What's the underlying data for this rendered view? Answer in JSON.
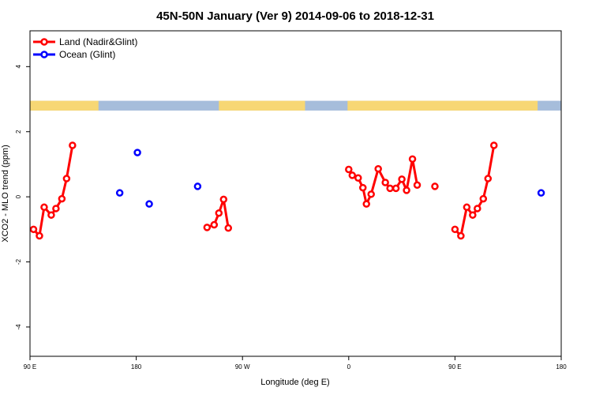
{
  "chart_data": {
    "type": "line",
    "title": "45N-50N January (Ver 9)   2014-09-06 to 2018-12-31",
    "xlabel": "Longitude (deg E)",
    "ylabel": "XCO2 - MLO trend (ppm)",
    "xlim": [
      90,
      540
    ],
    "ylim": [
      -4.9,
      5.1
    ],
    "x_ticks": [
      {
        "value": 90,
        "label": "90 E"
      },
      {
        "value": 180,
        "label": "180"
      },
      {
        "value": 270,
        "label": "90 W"
      },
      {
        "value": 360,
        "label": "0"
      },
      {
        "value": 450,
        "label": "90 E"
      },
      {
        "value": 540,
        "label": "180"
      }
    ],
    "y_ticks": [
      {
        "value": -4,
        "label": "-4"
      },
      {
        "value": -2,
        "label": "-2"
      },
      {
        "value": 0,
        "label": "0"
      },
      {
        "value": 2,
        "label": "2"
      },
      {
        "value": 4,
        "label": "4"
      }
    ],
    "grid": false,
    "legend_position": "top-left",
    "land_band": {
      "y_range": [
        2.65,
        2.95
      ],
      "ocean_color": "#a6bddb",
      "land_color": "#f7d774"
    },
    "series": [
      {
        "name": "Land (Nadir&Glint)",
        "color": "#ff0000",
        "line": true,
        "segments": [
          [
            [
              93,
              -1.0
            ],
            [
              98,
              -1.2
            ],
            [
              102,
              -0.32
            ],
            [
              108,
              -0.56
            ],
            [
              112,
              -0.36
            ],
            [
              117,
              -0.06
            ],
            [
              121,
              0.56
            ],
            [
              126,
              1.58
            ]
          ],
          [
            [
              240,
              -0.94
            ],
            [
              246,
              -0.86
            ],
            [
              250,
              -0.5
            ],
            [
              254,
              -0.08
            ],
            [
              258,
              -0.96
            ]
          ],
          [
            [
              360,
              0.84
            ],
            [
              363,
              0.66
            ],
            [
              368,
              0.58
            ],
            [
              372,
              0.28
            ],
            [
              375,
              -0.22
            ],
            [
              379,
              0.08
            ],
            [
              385,
              0.86
            ],
            [
              391,
              0.44
            ],
            [
              395,
              0.26
            ],
            [
              400,
              0.26
            ],
            [
              405,
              0.54
            ],
            [
              409,
              0.2
            ],
            [
              414,
              1.16
            ],
            [
              418,
              0.36
            ]
          ],
          [
            [
              433,
              0.32
            ]
          ],
          [
            [
              450,
              -1.0
            ],
            [
              455,
              -1.2
            ],
            [
              460,
              -0.32
            ],
            [
              465,
              -0.56
            ],
            [
              469,
              -0.36
            ],
            [
              474,
              -0.06
            ],
            [
              478,
              0.56
            ],
            [
              483,
              1.58
            ]
          ]
        ]
      },
      {
        "name": "Ocean (Glint)",
        "color": "#0000ff",
        "line": false,
        "points": [
          [
            166,
            0.12
          ],
          [
            181,
            1.36
          ],
          [
            191,
            -0.22
          ],
          [
            232,
            0.32
          ],
          [
            523,
            0.12
          ]
        ]
      }
    ]
  }
}
